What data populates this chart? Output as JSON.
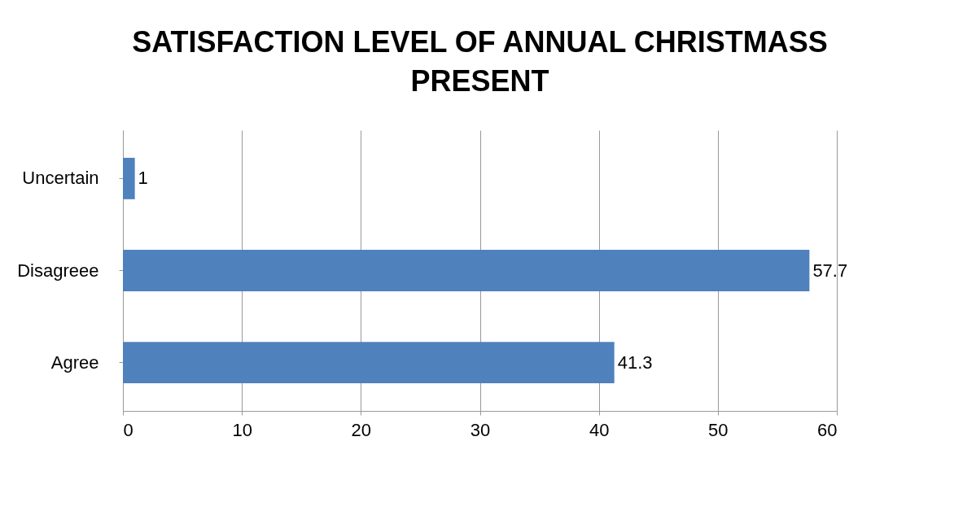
{
  "chart_data": {
    "type": "bar",
    "orientation": "horizontal",
    "title": "SATISFACTION LEVEL OF ANNUAL CHRISTMASS PRESENT",
    "categories": [
      "Uncertain",
      "Disagreee",
      "Agree"
    ],
    "values": [
      1,
      57.7,
      41.3
    ],
    "color": "#4f81bd",
    "xlim": [
      0,
      60
    ],
    "xticks": [
      0,
      10,
      20,
      30,
      40,
      50,
      60
    ],
    "grid": "x",
    "data_labels": true
  }
}
